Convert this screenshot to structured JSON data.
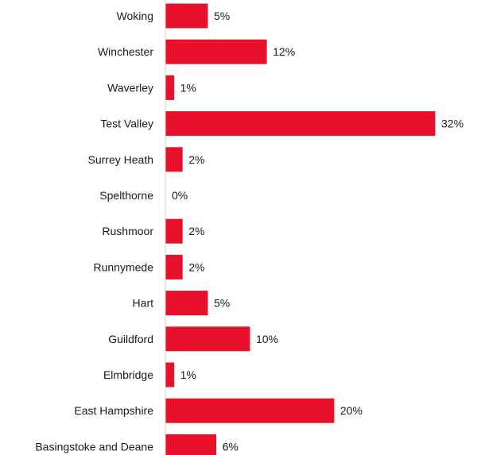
{
  "chart_data": {
    "type": "bar",
    "orientation": "horizontal",
    "title": "",
    "xlabel": "",
    "ylabel": "",
    "categories": [
      "Woking",
      "Winchester",
      "Waverley",
      "Test Valley",
      "Surrey Heath",
      "Spelthorne",
      "Rushmoor",
      "Runnymede",
      "Hart",
      "Guildford",
      "Elmbridge",
      "East Hampshire",
      "Basingstoke and Deane"
    ],
    "values": [
      5,
      12,
      1,
      32,
      2,
      0,
      2,
      2,
      5,
      10,
      1,
      20,
      6
    ],
    "value_labels": [
      "5%",
      "12%",
      "1%",
      "32%",
      "2%",
      "0%",
      "2%",
      "2%",
      "5%",
      "10%",
      "1%",
      "20%",
      "6%"
    ],
    "xlim": [
      0,
      32
    ],
    "grid": false,
    "bar_color": "#e8102a",
    "axis_color": "#d0d0d0"
  }
}
